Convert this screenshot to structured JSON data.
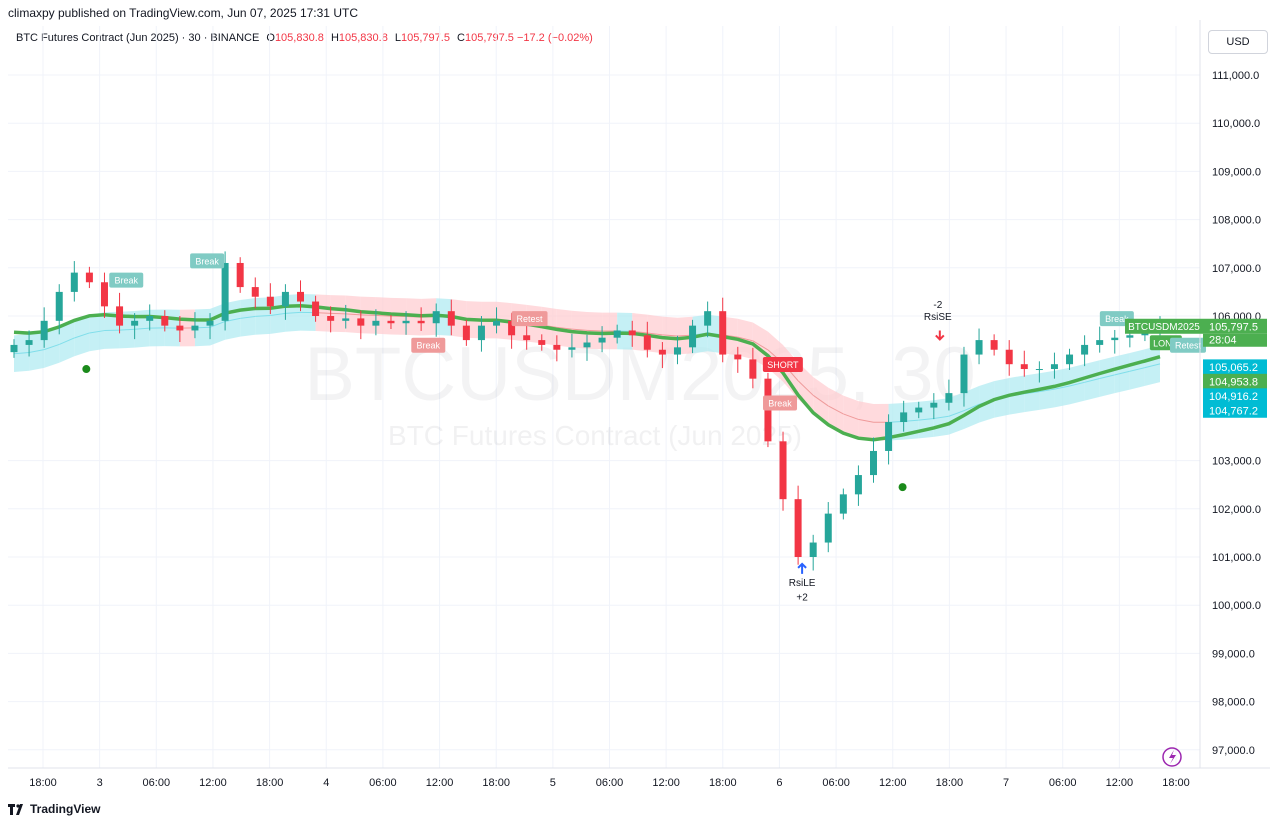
{
  "header": {
    "published": "climaxpy published on TradingView.com, Jun 07, 2025 17:31 UTC",
    "symbol": "BTC Futures Contract (Jun 2025) · 30 · BINANCE",
    "open_label": "O",
    "open": "105,830.8",
    "high_label": "H",
    "high": "105,830.8",
    "low_label": "L",
    "low": "105,797.5",
    "close_label": "C",
    "close": "105,797.5",
    "change": "−17.2 (−0.02%)"
  },
  "currency_button": "USD",
  "watermark": {
    "line1": "BTCUSDM2025, 30",
    "line2": "BTC Futures Contract (Jun 2025)"
  },
  "footer": {
    "brand": "TradingView"
  },
  "colors": {
    "up": "#26a69a",
    "down": "#f23645",
    "ema": "#4caf50",
    "bull_band": "#b2ebf2",
    "bear_band": "#ffcdd2"
  },
  "chart_data": {
    "type": "candlestick",
    "ylim": [
      96600,
      111600
    ],
    "y_ticks": [
      "111,000.0",
      "110,000.0",
      "109,000.0",
      "108,000.0",
      "107,000.0",
      "106,000.0",
      "103,000.0",
      "102,000.0",
      "101,000.0",
      "100,000.0",
      "99,000.0",
      "98,000.0",
      "97,000.0"
    ],
    "x_ticks": [
      "18:00",
      "3",
      "06:00",
      "12:00",
      "18:00",
      "4",
      "06:00",
      "12:00",
      "18:00",
      "5",
      "06:00",
      "12:00",
      "18:00",
      "6",
      "06:00",
      "12:00",
      "18:00",
      "7",
      "06:00",
      "12:00",
      "18:00"
    ],
    "closes": [
      105400,
      105500,
      105900,
      106500,
      106900,
      106700,
      106200,
      105800,
      105900,
      106000,
      105800,
      105700,
      105800,
      105900,
      107100,
      106600,
      106400,
      106200,
      106500,
      106300,
      106000,
      105900,
      105950,
      105800,
      105900,
      105850,
      105900,
      105850,
      106100,
      105800,
      105500,
      105800,
      105900,
      105600,
      105500,
      105400,
      105300,
      105350,
      105450,
      105550,
      105700,
      105600,
      105300,
      105200,
      105350,
      105800,
      106100,
      105200,
      105100,
      104700,
      103400,
      102200,
      101000,
      101300,
      101900,
      102300,
      102700,
      103200,
      103800,
      104000,
      104100,
      104200,
      104400,
      105200,
      105500,
      105300,
      105000,
      104900,
      104900,
      105000,
      105200,
      105400,
      105500,
      105550,
      105600,
      105700,
      105797.5
    ],
    "price_labels": [
      {
        "text": "105,797.5",
        "color": "#4caf50"
      },
      {
        "text": "28:04",
        "color": "#4caf50"
      },
      {
        "text": "105,065.2",
        "color": "#00bcd4"
      },
      {
        "text": "104,953.8",
        "color": "#4caf50"
      },
      {
        "text": "104,916.2",
        "color": "#00bcd4"
      },
      {
        "text": "104,767.2",
        "color": "#00bcd4"
      }
    ],
    "symbol_tag": "BTCUSDM2025",
    "annotations": {
      "break": "Break",
      "retest": "Retest",
      "short": "SHORT",
      "long": "LONG",
      "rsise": "RsiSE",
      "rsise_n": "-2",
      "rsile": "RsiLE",
      "rsile_n": "+2"
    }
  }
}
